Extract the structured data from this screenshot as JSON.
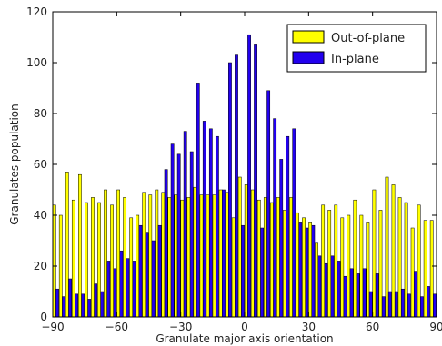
{
  "chart_data": {
    "type": "bar",
    "title": "",
    "xlabel": "Granulate major axis orientation",
    "ylabel": "Granulates population",
    "xlim": [
      -90,
      90
    ],
    "ylim": [
      0,
      120
    ],
    "xticks": [
      -90,
      -60,
      -30,
      0,
      30,
      60,
      90
    ],
    "xtick_labels": [
      "−90",
      "−60",
      "−30",
      "0",
      "30",
      "60",
      "90"
    ],
    "yticks": [
      0,
      20,
      40,
      60,
      80,
      100,
      120
    ],
    "ytick_labels": [
      "0",
      "20",
      "40",
      "60",
      "80",
      "100",
      "120"
    ],
    "grid": false,
    "legend_position": "top-right",
    "bin_centers": [
      -88.5,
      -85.5,
      -82.5,
      -79.5,
      -76.5,
      -73.5,
      -70.5,
      -67.5,
      -64.5,
      -61.5,
      -58.5,
      -55.5,
      -52.5,
      -49.5,
      -46.5,
      -43.5,
      -40.5,
      -37.5,
      -34.5,
      -31.5,
      -28.5,
      -25.5,
      -22.5,
      -19.5,
      -16.5,
      -13.5,
      -10.5,
      -7.5,
      -4.5,
      -1.5,
      1.5,
      4.5,
      7.5,
      10.5,
      13.5,
      16.5,
      19.5,
      22.5,
      25.5,
      28.5,
      31.5,
      34.5,
      37.5,
      40.5,
      43.5,
      46.5,
      49.5,
      52.5,
      55.5,
      58.5,
      61.5,
      64.5,
      67.5,
      70.5,
      73.5,
      76.5,
      79.5,
      82.5,
      85.5,
      88.5
    ],
    "series": [
      {
        "name": "Out-of-plane",
        "color": "#ffff00",
        "values": [
          44,
          40,
          57,
          46,
          56,
          45,
          47,
          45,
          50,
          44,
          50,
          47,
          39,
          40,
          49,
          48,
          50,
          49,
          47,
          48,
          46,
          47,
          51,
          48,
          48,
          48,
          50,
          49,
          39,
          55,
          52,
          50,
          46,
          47,
          45,
          47,
          42,
          47,
          41,
          39,
          37,
          29,
          44,
          42,
          44,
          39,
          40,
          46,
          40,
          37,
          50,
          42,
          55,
          52,
          47,
          45,
          35,
          44,
          38,
          38
        ]
      },
      {
        "name": "In-plane",
        "color": "#2200ee",
        "values": [
          11,
          8,
          15,
          9,
          9,
          7,
          13,
          10,
          22,
          19,
          26,
          23,
          22,
          36,
          33,
          30,
          36,
          58,
          68,
          64,
          73,
          65,
          92,
          77,
          74,
          71,
          50,
          100,
          103,
          36,
          111,
          107,
          35,
          89,
          78,
          62,
          71,
          74,
          37,
          35,
          36,
          24,
          21,
          24,
          22,
          16,
          19,
          17,
          19,
          10,
          17,
          8,
          10,
          10,
          11,
          9,
          18,
          8,
          12,
          9
        ]
      }
    ]
  }
}
